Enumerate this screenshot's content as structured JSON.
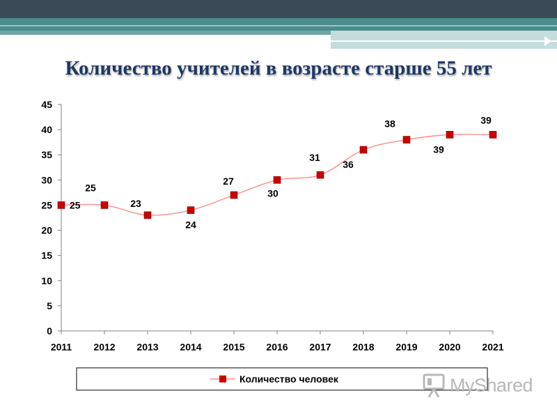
{
  "slide": {
    "title": "Количество учителей в возрасте старше 55 лет"
  },
  "watermark": {
    "text": "MyShared"
  },
  "colors": {
    "header_dark": "#3a4a56",
    "header_teal": "#4b8c8c",
    "header_light": "#c5dcdc",
    "title": "#1f3864",
    "line": "#ff8a8a",
    "marker": "#cc0000"
  },
  "chart_data": {
    "type": "line",
    "title": "",
    "xlabel": "",
    "ylabel": "",
    "categories": [
      "2011",
      "2012",
      "2013",
      "2014",
      "2015",
      "2016",
      "2017",
      "2018",
      "2019",
      "2020",
      "2021"
    ],
    "series": [
      {
        "name": "Количество человек",
        "values": [
          25,
          25,
          23,
          24,
          27,
          30,
          31,
          36,
          38,
          39,
          39
        ]
      }
    ],
    "y_ticks": [
      "0",
      "5",
      "10",
      "15",
      "20",
      "25",
      "30",
      "35",
      "40",
      "45"
    ],
    "ylim": [
      0,
      45
    ],
    "grid": false,
    "legend": "bottom",
    "data_labels": true
  }
}
